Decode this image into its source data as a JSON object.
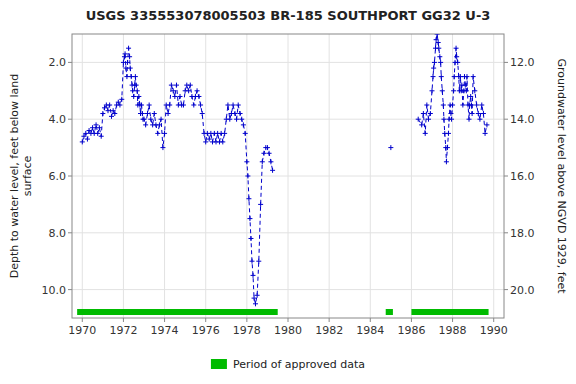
{
  "chart_data": {
    "type": "line",
    "title": "USGS 335553078005503 BR-185 SOUTHPORT GG32 U-3",
    "ylabel": "Depth to water level, feet below land\nsurface",
    "y2label": "Groundwater level above NGVD 1929, feet",
    "ylim": [
      11.0,
      1.0
    ],
    "y2lim": [
      21.0,
      11.0
    ],
    "xlim": [
      1969.5,
      1990.5
    ],
    "xticks": [
      1970,
      1972,
      1974,
      1976,
      1978,
      1980,
      1982,
      1984,
      1986,
      1988,
      1990
    ],
    "yticks": [
      {
        "value": 2.0,
        "label": "2.0"
      },
      {
        "value": 4.0,
        "label": "4.0"
      },
      {
        "value": 6.0,
        "label": "6.0"
      },
      {
        "value": 8.0,
        "label": "8.0"
      },
      {
        "value": 10.0,
        "label": "10.0"
      }
    ],
    "y2ticks": [
      {
        "value": 12.0,
        "label": "12.0"
      },
      {
        "value": 14.0,
        "label": "14.0"
      },
      {
        "value": 16.0,
        "label": "16.0"
      },
      {
        "value": 18.0,
        "label": "18.0"
      },
      {
        "value": 20.0,
        "label": "20.0"
      }
    ],
    "grid": true,
    "legend": "bottom",
    "approved_periods": {
      "name": "Period of approved data",
      "color": "#00BB00",
      "ranges": [
        [
          1969.75,
          1979.5
        ],
        [
          1984.75,
          1985.1
        ],
        [
          1986.0,
          1989.75
        ]
      ]
    },
    "series": [
      {
        "color": "#0000CC",
        "marker": "plus",
        "line_style": "dashed",
        "x": [
          1970.0,
          1970.08,
          1970.17,
          1970.25,
          1970.33,
          1970.42,
          1970.5,
          1970.58,
          1970.67,
          1970.75,
          1970.83,
          1970.92,
          1971.0,
          1971.08,
          1971.17,
          1971.25,
          1971.33,
          1971.42,
          1971.5,
          1971.58,
          1971.67,
          1971.75,
          1971.83,
          1971.92,
          1972.0,
          1972.05,
          1972.08,
          1972.12,
          1972.17,
          1972.2,
          1972.25,
          1972.3,
          1972.33,
          1972.38,
          1972.42,
          1972.45,
          1972.5,
          1972.55,
          1972.58,
          1972.62,
          1972.67,
          1972.7,
          1972.75,
          1972.8,
          1972.83,
          1972.88,
          1972.92,
          1972.95,
          1973.0,
          1973.08,
          1973.17,
          1973.25,
          1973.33,
          1973.42,
          1973.5,
          1973.58,
          1973.67,
          1973.75,
          1973.83,
          1973.92,
          1974.0,
          1974.08,
          1974.17,
          1974.25,
          1974.33,
          1974.42,
          1974.5,
          1974.58,
          1974.67,
          1974.75,
          1974.83,
          1974.92,
          1975.0,
          1975.08,
          1975.17,
          1975.25,
          1975.33,
          1975.42,
          1975.5,
          1975.58,
          1975.67,
          1975.75,
          1975.83,
          1975.92,
          1976.0,
          1976.08,
          1976.17,
          1976.25,
          1976.33,
          1976.42,
          1976.5,
          1976.58,
          1976.67,
          1976.75,
          1976.83,
          1976.92,
          1977.0,
          1977.08,
          1977.17,
          1977.25,
          1977.33,
          1977.42,
          1977.5,
          1977.58,
          1977.67,
          1977.75,
          1977.83,
          1977.92,
          1978.0,
          1978.05,
          1978.1,
          1978.15,
          1978.2,
          1978.25,
          1978.3,
          1978.35,
          1978.42,
          1978.5,
          1978.58,
          1978.67,
          1978.75,
          1978.83,
          1978.92,
          1979.0,
          1979.08,
          1979.17,
          1979.25
        ],
        "values": [
          4.8,
          4.6,
          4.5,
          4.7,
          4.4,
          4.5,
          4.3,
          4.5,
          4.2,
          4.5,
          4.3,
          4.6,
          3.8,
          3.6,
          3.5,
          3.7,
          3.5,
          3.9,
          3.7,
          3.8,
          3.5,
          3.4,
          3.5,
          3.3,
          2.0,
          1.8,
          1.7,
          2.2,
          2.5,
          2.0,
          1.5,
          1.8,
          2.2,
          2.5,
          2.8,
          3.0,
          3.2,
          2.8,
          2.5,
          2.8,
          3.0,
          3.5,
          3.2,
          3.5,
          3.8,
          3.5,
          3.8,
          4.0,
          4.0,
          4.2,
          3.8,
          3.5,
          4.0,
          4.2,
          3.8,
          4.2,
          4.5,
          4.2,
          4.0,
          5.0,
          4.5,
          3.5,
          3.8,
          3.5,
          2.8,
          3.0,
          3.2,
          2.8,
          3.5,
          3.2,
          3.5,
          3.5,
          3.0,
          2.8,
          3.0,
          2.8,
          3.2,
          3.5,
          3.2,
          3.0,
          3.2,
          3.5,
          3.8,
          4.5,
          4.8,
          4.5,
          4.7,
          4.5,
          4.8,
          4.5,
          4.8,
          4.5,
          4.8,
          4.5,
          4.8,
          4.5,
          4.0,
          3.5,
          4.0,
          3.8,
          3.5,
          3.8,
          4.0,
          3.5,
          3.8,
          4.0,
          4.2,
          4.5,
          5.5,
          6.0,
          6.8,
          7.5,
          8.2,
          9.0,
          9.5,
          10.3,
          10.5,
          10.2,
          9.0,
          7.0,
          5.5,
          5.2,
          5.0,
          5.0,
          5.2,
          5.5,
          5.8
        ]
      },
      {
        "color": "#0000CC",
        "marker": "plus",
        "line_style": "dashed",
        "x": [
          1985.0
        ],
        "values": [
          5.0
        ]
      },
      {
        "color": "#0000CC",
        "marker": "plus",
        "line_style": "dashed",
        "x": [
          1986.33,
          1986.5,
          1986.58,
          1986.67,
          1986.75,
          1986.83,
          1986.92,
          1987.0,
          1987.05,
          1987.08,
          1987.12,
          1987.17,
          1987.2,
          1987.25,
          1987.3,
          1987.33,
          1987.38,
          1987.42,
          1987.45,
          1987.5,
          1987.55,
          1987.58,
          1987.62,
          1987.67,
          1987.7,
          1987.75,
          1987.8,
          1987.83,
          1987.88,
          1987.92,
          1987.95,
          1988.0,
          1988.05,
          1988.08,
          1988.12,
          1988.17,
          1988.2,
          1988.25,
          1988.3,
          1988.33,
          1988.38,
          1988.42,
          1988.45,
          1988.5,
          1988.55,
          1988.58,
          1988.62,
          1988.67,
          1988.7,
          1988.75,
          1988.8,
          1988.83,
          1988.88,
          1988.92,
          1988.95,
          1989.0,
          1989.08,
          1989.17,
          1989.25,
          1989.33,
          1989.42,
          1989.5,
          1989.58,
          1989.67
        ],
        "values": [
          4.0,
          4.2,
          3.8,
          4.5,
          3.5,
          4.0,
          3.8,
          3.0,
          2.5,
          2.2,
          2.0,
          1.5,
          1.2,
          1.0,
          1.3,
          1.5,
          1.8,
          2.0,
          2.5,
          3.0,
          3.5,
          4.0,
          4.5,
          5.0,
          5.5,
          5.0,
          4.5,
          4.0,
          3.5,
          3.8,
          4.0,
          3.5,
          3.0,
          2.5,
          2.0,
          1.5,
          1.8,
          2.0,
          2.5,
          3.0,
          2.5,
          3.0,
          2.8,
          3.5,
          3.0,
          2.5,
          2.8,
          3.0,
          2.5,
          3.5,
          4.0,
          3.5,
          3.2,
          3.5,
          3.8,
          2.5,
          3.0,
          3.5,
          3.8,
          4.0,
          3.5,
          3.8,
          4.5,
          4.2
        ]
      }
    ]
  }
}
